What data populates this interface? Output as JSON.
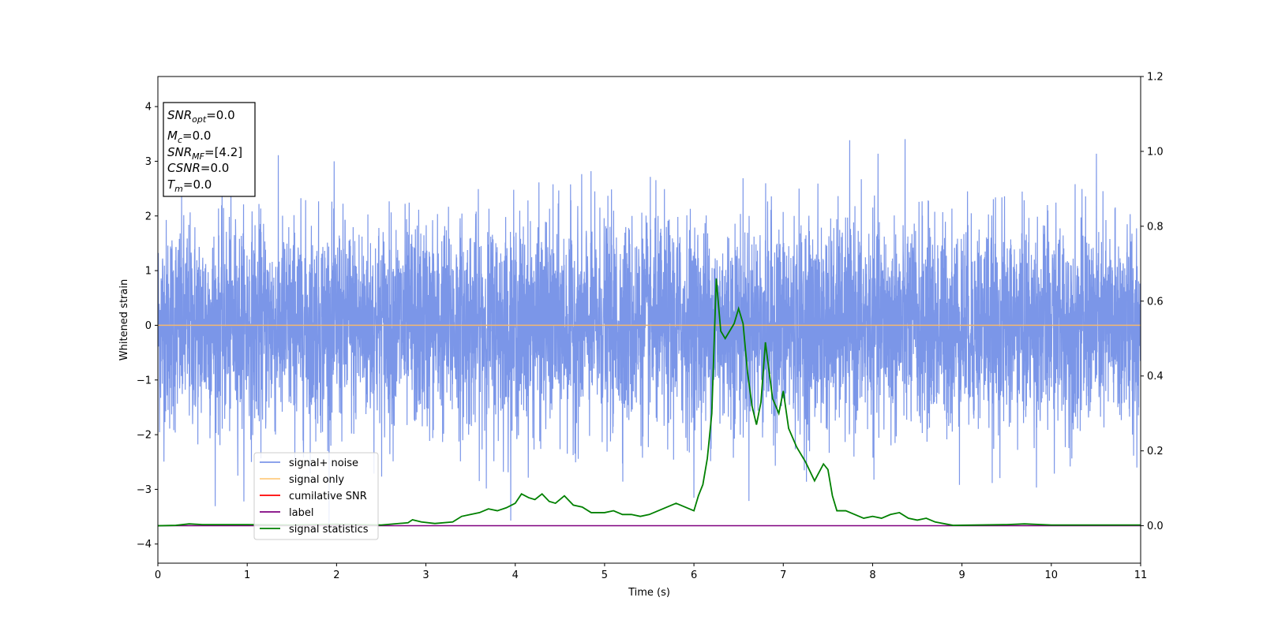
{
  "chart_data": {
    "type": "line",
    "title": "",
    "xlabel": "Time (s)",
    "ylabel": "Whitened strain",
    "ylabel_right": "",
    "xlim": [
      0,
      11
    ],
    "ylim_left": [
      -4.35,
      4.55
    ],
    "ylim_right": [
      -0.1,
      1.2
    ],
    "x_ticks": [
      "0",
      "1",
      "2",
      "3",
      "4",
      "5",
      "6",
      "7",
      "8",
      "9",
      "10",
      "11"
    ],
    "y_ticks_left": [
      "−4",
      "−3",
      "−2",
      "−1",
      "0",
      "1",
      "2",
      "3",
      "4"
    ],
    "y_ticks_right": [
      "0.0",
      "0.2",
      "0.4",
      "0.6",
      "0.8",
      "1.0",
      "1.2"
    ],
    "grid": false,
    "legend_position": "lower-left",
    "legend": [
      {
        "label": "signal+ noise",
        "color": "#7b96e8"
      },
      {
        "label": "signal only",
        "color": "#ffcc80"
      },
      {
        "label": "cumilative SNR",
        "color": "#ff0000"
      },
      {
        "label": "label",
        "color": "#800080"
      },
      {
        "label": "signal statistics",
        "color": "#008000"
      }
    ],
    "info_box": [
      {
        "main": "SNR",
        "sub": "opt",
        "value": "=0.0"
      },
      {
        "main": "M",
        "sub": "c",
        "value": "=0.0"
      },
      {
        "main": "SNR",
        "sub": "MF",
        "value": "=[4.2]"
      },
      {
        "main": "CSNR",
        "sub": "",
        "value": "=0.0"
      },
      {
        "main": "T",
        "sub": "m",
        "value": "=0.0"
      }
    ],
    "series": [
      {
        "name": "signal+ noise",
        "axis": "left",
        "color": "#7b96e8",
        "kind": "noise",
        "x_range": [
          0,
          11
        ],
        "approx_envelope": [
          -3.95,
          4.18
        ]
      },
      {
        "name": "signal only",
        "axis": "left",
        "color": "#f4b870",
        "x": [
          0,
          11
        ],
        "y": [
          0,
          0
        ]
      },
      {
        "name": "label",
        "axis": "right",
        "color": "#800080",
        "x": [
          0,
          11
        ],
        "y": [
          0,
          0
        ]
      },
      {
        "name": "signal statistics",
        "axis": "right",
        "color": "#008000",
        "x": [
          0,
          0.2,
          0.35,
          0.5,
          1.0,
          1.5,
          2.0,
          2.5,
          2.8,
          2.85,
          2.95,
          3.1,
          3.3,
          3.4,
          3.5,
          3.6,
          3.7,
          3.8,
          3.9,
          4.0,
          4.07,
          4.15,
          4.22,
          4.3,
          4.38,
          4.45,
          4.55,
          4.65,
          4.75,
          4.85,
          5.0,
          5.1,
          5.2,
          5.3,
          5.4,
          5.5,
          5.6,
          5.7,
          5.8,
          5.9,
          6.0,
          6.05,
          6.1,
          6.15,
          6.2,
          6.25,
          6.3,
          6.35,
          6.4,
          6.45,
          6.5,
          6.55,
          6.6,
          6.65,
          6.7,
          6.75,
          6.8,
          6.88,
          6.95,
          7.0,
          7.06,
          7.15,
          7.25,
          7.35,
          7.45,
          7.5,
          7.55,
          7.6,
          7.7,
          7.8,
          7.9,
          8.0,
          8.1,
          8.2,
          8.3,
          8.4,
          8.5,
          8.6,
          8.7,
          8.9,
          9.5,
          9.7,
          10.0,
          11.0
        ],
        "y": [
          0,
          0.001,
          0.005,
          0.003,
          0.003,
          0.002,
          0.004,
          0.002,
          0.008,
          0.016,
          0.01,
          0.006,
          0.01,
          0.025,
          0.03,
          0.035,
          0.045,
          0.04,
          0.048,
          0.06,
          0.085,
          0.075,
          0.07,
          0.085,
          0.065,
          0.06,
          0.08,
          0.055,
          0.05,
          0.035,
          0.035,
          0.04,
          0.03,
          0.03,
          0.025,
          0.03,
          0.04,
          0.05,
          0.06,
          0.05,
          0.04,
          0.08,
          0.11,
          0.18,
          0.3,
          0.66,
          0.52,
          0.5,
          0.52,
          0.54,
          0.58,
          0.54,
          0.41,
          0.32,
          0.27,
          0.33,
          0.49,
          0.34,
          0.3,
          0.36,
          0.26,
          0.21,
          0.17,
          0.12,
          0.165,
          0.15,
          0.08,
          0.04,
          0.04,
          0.03,
          0.02,
          0.025,
          0.02,
          0.03,
          0.035,
          0.02,
          0.015,
          0.02,
          0.01,
          0.001,
          0.003,
          0.005,
          0.002,
          0.002
        ]
      }
    ]
  }
}
